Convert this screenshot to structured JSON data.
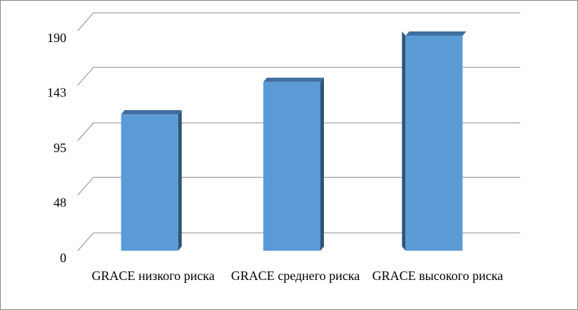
{
  "chart_data": {
    "type": "bar3d",
    "categories": [
      "GRACE низкого риска",
      "GRACE среднего риска",
      "GRACE высокого риска"
    ],
    "values": [
      110,
      138,
      178
    ],
    "color": "#5b9bd5",
    "ylim": [
      0,
      190
    ],
    "yticks": [
      0,
      48,
      95,
      143,
      190
    ],
    "grid": true
  }
}
